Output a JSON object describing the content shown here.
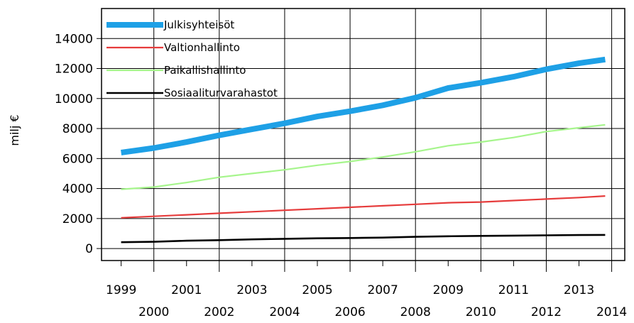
{
  "chart_data": {
    "type": "line",
    "title": "",
    "xlabel": "",
    "ylabel": "milj €",
    "ylim": [
      -800,
      16000
    ],
    "xlim": [
      1998.4,
      2014.4
    ],
    "yticks": [
      0,
      2000,
      4000,
      6000,
      8000,
      10000,
      12000,
      14000
    ],
    "xticks": [
      1999,
      2000,
      2001,
      2002,
      2003,
      2004,
      2005,
      2006,
      2007,
      2008,
      2009,
      2010,
      2011,
      2012,
      2013,
      2014
    ],
    "grid": true,
    "legend_position": "top-left",
    "x": [
      1999,
      2000,
      2001,
      2002,
      2003,
      2004,
      2005,
      2006,
      2007,
      2008,
      2009,
      2010,
      2011,
      2012,
      2013,
      2013.8
    ],
    "series": [
      {
        "name": "Julkisyhteisöt",
        "color": "#1ea0e6",
        "values": [
          6400,
          6700,
          7100,
          7550,
          7950,
          8350,
          8800,
          9150,
          9550,
          10050,
          10700,
          11050,
          11450,
          11950,
          12350,
          12600
        ]
      },
      {
        "name": "Valtionhallinto",
        "color": "#e63c3c",
        "values": [
          2050,
          2150,
          2250,
          2350,
          2450,
          2550,
          2650,
          2750,
          2850,
          2950,
          3050,
          3100,
          3200,
          3300,
          3400,
          3500
        ]
      },
      {
        "name": "Paikallishallinto",
        "color": "#a6f58c",
        "values": [
          3950,
          4100,
          4400,
          4750,
          5000,
          5250,
          5550,
          5800,
          6100,
          6450,
          6850,
          7100,
          7400,
          7800,
          8050,
          8250
        ]
      },
      {
        "name": "Sosiaaliturvarahastot",
        "color": "#000000",
        "values": [
          420,
          450,
          520,
          560,
          610,
          650,
          680,
          700,
          730,
          780,
          820,
          840,
          860,
          880,
          900,
          910
        ]
      }
    ]
  }
}
